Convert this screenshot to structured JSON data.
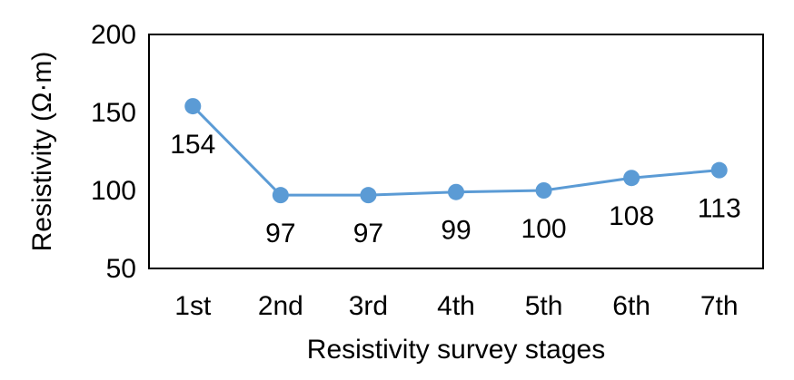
{
  "chart_data": {
    "type": "line",
    "title": "",
    "xlabel": "Resistivity survey stages",
    "ylabel": "Resistivity (Ω·m)",
    "categories": [
      "1st",
      "2nd",
      "3rd",
      "4th",
      "5th",
      "6th",
      "7th"
    ],
    "series": [
      {
        "values": [
          154,
          97,
          97,
          99,
          100,
          108,
          113
        ],
        "data_labels": [
          "154",
          "97",
          "97",
          "99",
          "100",
          "108",
          "113"
        ],
        "color": "#5B9BD5"
      }
    ],
    "ylim": [
      50,
      200
    ],
    "yticks": [
      "50",
      "100",
      "150",
      "200"
    ],
    "grid": false,
    "legend": "none",
    "marker": "circle",
    "frame_color": "#000000"
  }
}
